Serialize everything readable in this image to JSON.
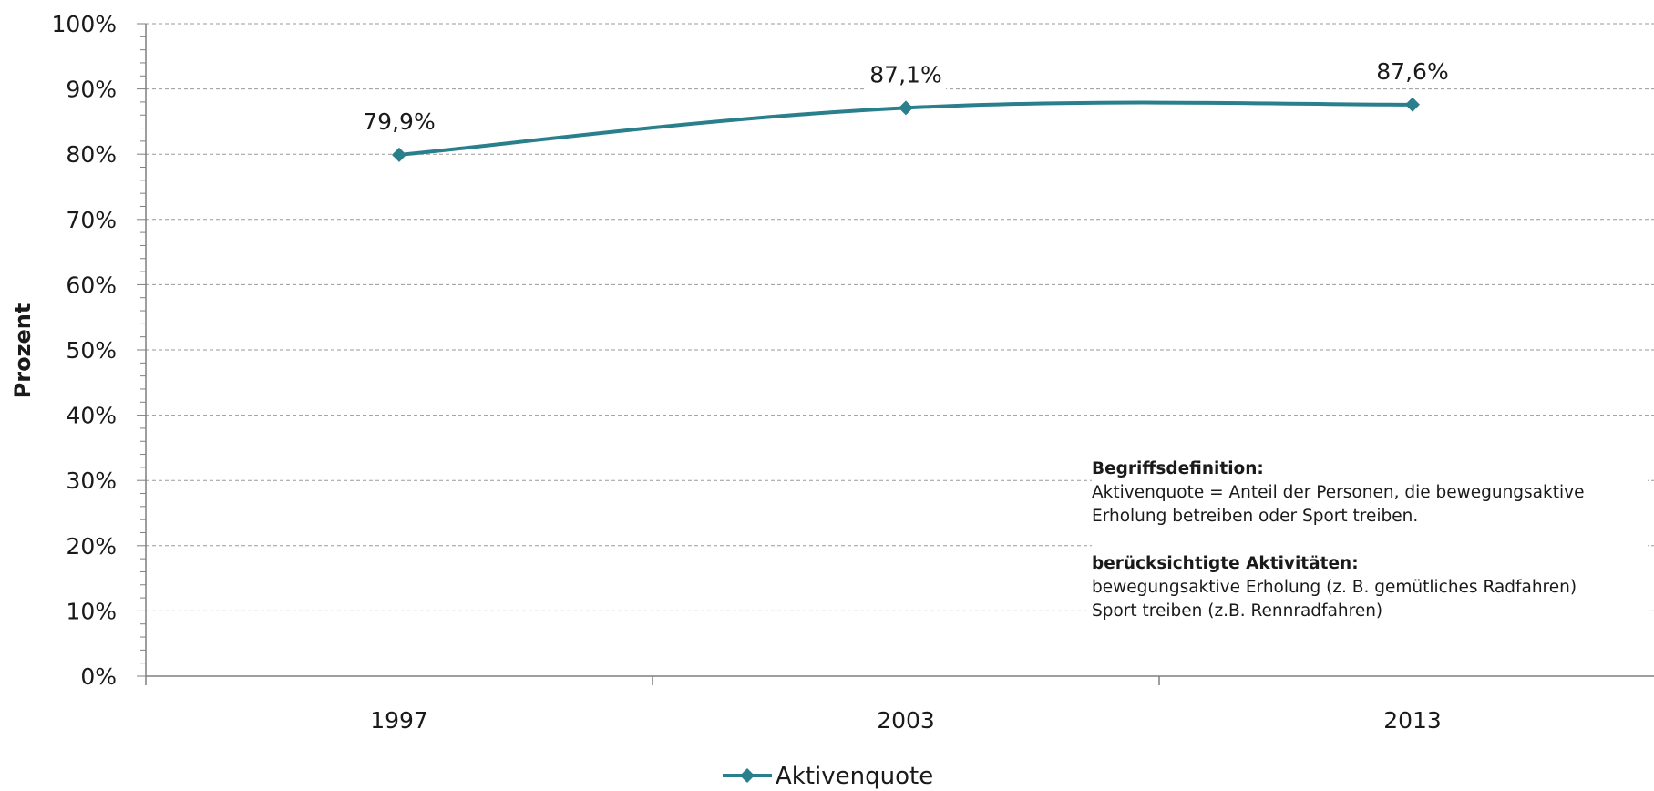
{
  "chart_data": {
    "type": "line",
    "title": "",
    "xlabel": "",
    "ylabel": "Prozent",
    "categories": [
      "1997",
      "2003",
      "2013"
    ],
    "series": [
      {
        "name": "Aktivenquote",
        "values": [
          79.9,
          87.1,
          87.6
        ],
        "labels": [
          "79,9%",
          "87,1%",
          "87,6%"
        ],
        "color": "#2a7f8c"
      }
    ],
    "ylim": [
      0,
      100
    ],
    "yticks": [
      "0%",
      "10%",
      "20%",
      "30%",
      "40%",
      "50%",
      "60%",
      "70%",
      "80%",
      "90%",
      "100%"
    ],
    "grid": true,
    "legend_position": "bottom-center"
  },
  "note": {
    "heading1": "Begriffsdefinition:",
    "line1": "Aktivenquote = Anteil der Personen, die bewegungsaktive",
    "line2": "Erholung betreiben oder Sport treiben.",
    "heading2": "berücksichtigte Aktivitäten:",
    "line3": "bewegungsaktive Erholung (z. B. gemütliches Radfahren)",
    "line4": "Sport treiben (z.B. Rennradfahren)"
  }
}
